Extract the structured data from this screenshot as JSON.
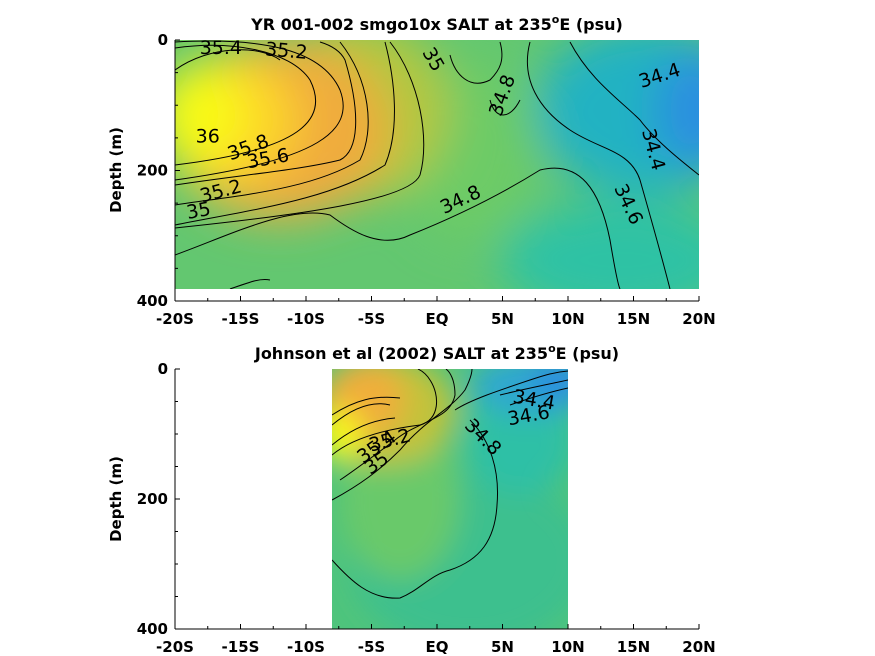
{
  "chart_data": [
    {
      "type": "heatmap",
      "title": "YR 001-002 smgo10x SALT at 235",
      "title_sup": "o",
      "title_suffix": "E (psu)",
      "ylabel": "Depth (m)",
      "xlim": [
        -20,
        20
      ],
      "ylim": [
        0,
        400
      ],
      "xticks": [
        "-20S",
        "-15S",
        "-10S",
        "-5S",
        "EQ",
        "5N",
        "10N",
        "15N",
        "20N"
      ],
      "yticks": [
        "0",
        "200",
        "400"
      ],
      "data_extent": {
        "x": [
          -20,
          20
        ],
        "depth": [
          0,
          380
        ]
      },
      "colormap": {
        "low": 34.2,
        "high": 36.1,
        "colors": [
          "#2a8fe0",
          "#22b8b8",
          "#5ccb6e",
          "#a9c93f",
          "#f2ae38",
          "#f9fa14"
        ]
      },
      "contour_labels": [
        {
          "text": "35.4",
          "x": -16.5,
          "y": 12,
          "angle": 0
        },
        {
          "text": "35.2",
          "x": -11.5,
          "y": 17,
          "angle": 5
        },
        {
          "text": "35",
          "x": -0.3,
          "y": 30,
          "angle": 60
        },
        {
          "text": "34.8",
          "x": 5.0,
          "y": 85,
          "angle": -70
        },
        {
          "text": "34.4",
          "x": 17.0,
          "y": 55,
          "angle": -18
        },
        {
          "text": "36",
          "x": -17.5,
          "y": 148,
          "angle": 0
        },
        {
          "text": "35.8",
          "x": -14.4,
          "y": 165,
          "angle": -20
        },
        {
          "text": "35.6",
          "x": -12.9,
          "y": 182,
          "angle": -10
        },
        {
          "text": "34.4",
          "x": 16.5,
          "y": 168,
          "angle": 75
        },
        {
          "text": "35.2",
          "x": -16.5,
          "y": 232,
          "angle": -15
        },
        {
          "text": "35",
          "x": -18.2,
          "y": 262,
          "angle": -10
        },
        {
          "text": "34.8",
          "x": 1.8,
          "y": 245,
          "angle": -25
        },
        {
          "text": "34.6",
          "x": 14.6,
          "y": 252,
          "angle": 65
        }
      ]
    },
    {
      "type": "heatmap",
      "title": "Johnson et al (2002) SALT at 235",
      "title_sup": "o",
      "title_suffix": "E (psu)",
      "ylabel": "Depth (m)",
      "xlim": [
        -20,
        20
      ],
      "ylim": [
        0,
        400
      ],
      "xticks": [
        "-20S",
        "-15S",
        "-10S",
        "-5S",
        "EQ",
        "5N",
        "10N",
        "15N",
        "20N"
      ],
      "yticks": [
        "0",
        "200",
        "400"
      ],
      "data_extent": {
        "x": [
          -8,
          10
        ],
        "depth": [
          0,
          400
        ]
      },
      "colormap": {
        "low": 34.2,
        "high": 36.1,
        "colors": [
          "#2a8fe0",
          "#22b8b8",
          "#5ccb6e",
          "#a9c93f",
          "#f2ae38",
          "#f9fa14"
        ]
      },
      "contour_labels": [
        {
          "text": "34.4",
          "x": 7.4,
          "y": 48,
          "angle": 10
        },
        {
          "text": "34.6",
          "x": 7.0,
          "y": 72,
          "angle": -10
        },
        {
          "text": "35.4",
          "x": -4.6,
          "y": 120,
          "angle": -35
        },
        {
          "text": "35.2",
          "x": -3.6,
          "y": 110,
          "angle": -15
        },
        {
          "text": "35",
          "x": -4.6,
          "y": 145,
          "angle": -35
        },
        {
          "text": "34.8",
          "x": 3.5,
          "y": 105,
          "angle": 45
        }
      ]
    }
  ]
}
